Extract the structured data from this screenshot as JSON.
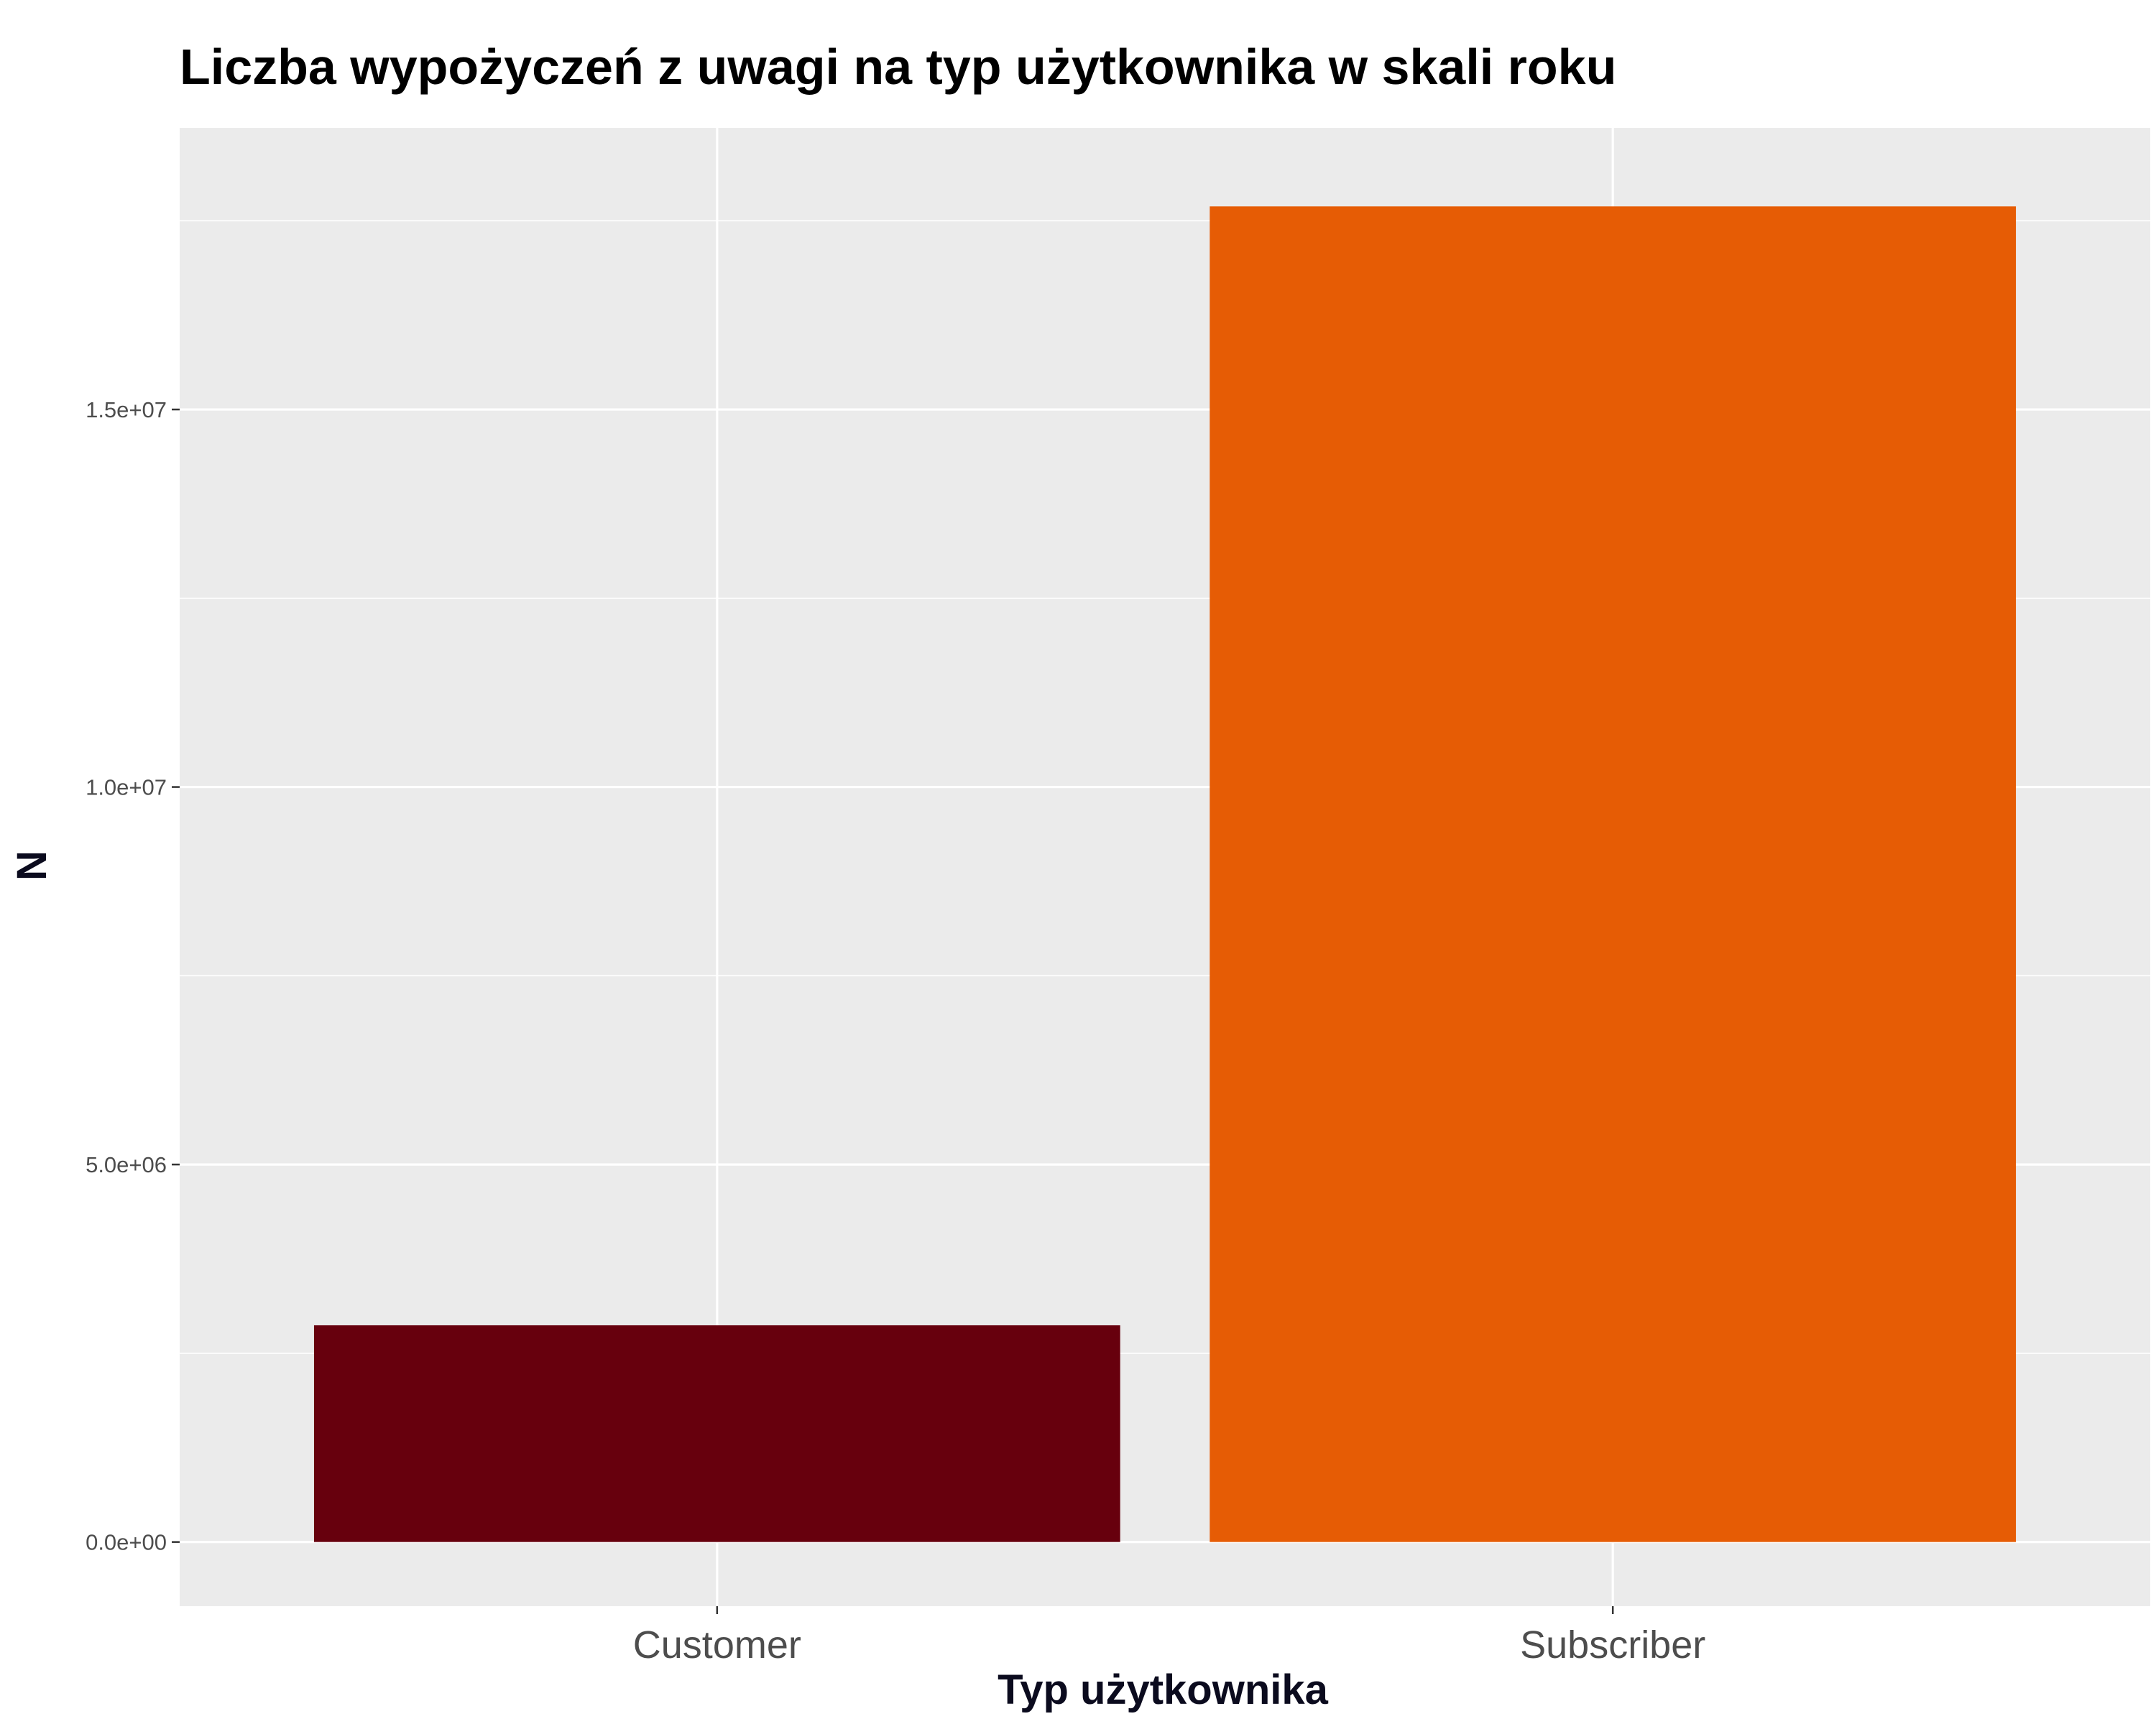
{
  "chart_data": {
    "type": "bar",
    "title": "Liczba wypożyczeń z uwagi na typ użytkownika w skali roku",
    "xlabel": "Typ użytkownika",
    "ylabel": "N",
    "categories": [
      "Customer",
      "Subscriber"
    ],
    "values": [
      2870000,
      17690000
    ],
    "bar_colors": [
      "#67000d",
      "#e65c05"
    ],
    "ylim": [
      -850000,
      18730000
    ],
    "y_ticks": [
      0,
      5000000,
      10000000,
      15000000
    ],
    "y_tick_labels": [
      "0.0e+00",
      "5.0e+06",
      "1.0e+07",
      "1.5e+07"
    ],
    "grid": true,
    "legend": "none",
    "panel_background": "#ebebeb",
    "grid_color": "#ffffff"
  }
}
